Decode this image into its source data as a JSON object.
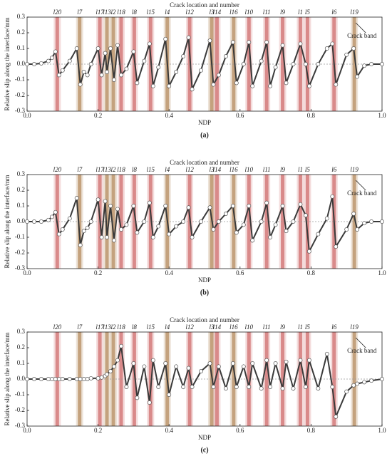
{
  "chart_data": [
    {
      "type": "line",
      "title": "Crack location and number",
      "xlabel": "NDP",
      "ylabel": "Relative slip along the interface/mm",
      "caption": "(a)",
      "annotation": "Crack band",
      "xlim": [
        0,
        1
      ],
      "xticks": [
        {
          "value": 0,
          "label": "0.0"
        },
        0.2,
        0.4,
        0.6,
        0.8,
        {
          "value": 1,
          "label": "1.0"
        }
      ],
      "ylim": [
        -0.3,
        0.3
      ],
      "yticks": [
        -0.3,
        -0.2,
        -0.1,
        {
          "value": 0,
          "label": "0.0"
        },
        0.1,
        0.2,
        0.3
      ],
      "cracks": [
        {
          "label": "l20",
          "x": 0.085,
          "color": "#d98a8a"
        },
        {
          "label": "l7",
          "x": 0.148,
          "color": "#c4a27e"
        },
        {
          "label": "l17",
          "x": 0.205,
          "color": "#d98a8a"
        },
        {
          "label": "l13",
          "x": 0.225,
          "color": "#c4a27e"
        },
        {
          "label": "l2",
          "x": 0.243,
          "color": "#c4a27e"
        },
        {
          "label": "l18",
          "x": 0.265,
          "color": "#d98a8a"
        },
        {
          "label": "l8",
          "x": 0.302,
          "color": "#d98a8a"
        },
        {
          "label": "l15",
          "x": 0.348,
          "color": "#d98a8a"
        },
        {
          "label": "l4",
          "x": 0.395,
          "color": "#c4a27e"
        },
        {
          "label": "l12",
          "x": 0.458,
          "color": "#d98a8a"
        },
        {
          "label": "l3",
          "x": 0.52,
          "color": "#c4a27e"
        },
        {
          "label": "l14",
          "x": 0.535,
          "color": "#d98a8a"
        },
        {
          "label": "l16",
          "x": 0.582,
          "color": "#c4a27e"
        },
        {
          "label": "l10",
          "x": 0.625,
          "color": "#d98a8a"
        },
        {
          "label": "l11",
          "x": 0.675,
          "color": "#d98a8a"
        },
        {
          "label": "l9",
          "x": 0.72,
          "color": "#d98a8a"
        },
        {
          "label": "l1",
          "x": 0.77,
          "color": "#d98a8a"
        },
        {
          "label": "l5",
          "x": 0.79,
          "color": "#d98a8a"
        },
        {
          "label": "l6",
          "x": 0.865,
          "color": "#d98a8a"
        },
        {
          "label": "l19",
          "x": 0.922,
          "color": "#c4a27e"
        }
      ],
      "color": "#3a3a3a",
      "x": [
        0,
        0.02,
        0.04,
        0.06,
        0.07,
        0.08,
        0.09,
        0.1,
        0.12,
        0.14,
        0.15,
        0.16,
        0.17,
        0.18,
        0.2,
        0.21,
        0.22,
        0.225,
        0.235,
        0.245,
        0.255,
        0.265,
        0.28,
        0.3,
        0.31,
        0.33,
        0.345,
        0.355,
        0.37,
        0.39,
        0.4,
        0.42,
        0.44,
        0.455,
        0.465,
        0.49,
        0.515,
        0.525,
        0.54,
        0.56,
        0.58,
        0.59,
        0.61,
        0.625,
        0.635,
        0.66,
        0.675,
        0.685,
        0.7,
        0.72,
        0.73,
        0.75,
        0.77,
        0.785,
        0.795,
        0.82,
        0.845,
        0.86,
        0.87,
        0.9,
        0.92,
        0.93,
        0.95,
        0.97,
        1.0
      ],
      "values": [
        0,
        0,
        0.005,
        0.02,
        0.04,
        0.08,
        -0.07,
        -0.04,
        0.02,
        0.1,
        -0.13,
        -0.05,
        -0.07,
        0,
        0.1,
        -0.07,
        0.07,
        -0.05,
        0.1,
        -0.1,
        0.12,
        -0.07,
        -0.03,
        0.08,
        -0.12,
        0.02,
        0.13,
        -0.14,
        -0.02,
        0.16,
        -0.14,
        -0.05,
        0.05,
        0.17,
        -0.16,
        -0.04,
        0.15,
        -0.13,
        -0.07,
        0.05,
        0.14,
        -0.12,
        0,
        0.14,
        -0.14,
        0.02,
        0.14,
        -0.14,
        -0.02,
        0.12,
        -0.12,
        0,
        0.13,
        0,
        -0.14,
        0,
        0.1,
        0.13,
        -0.13,
        0.06,
        0.1,
        -0.08,
        -0.01,
        0,
        0
      ]
    },
    {
      "type": "line",
      "title": "Crack location and number",
      "xlabel": "NDP",
      "ylabel": "Relative slip along the interface/mm",
      "caption": "(b)",
      "annotation": "Crack band",
      "xlim": [
        0,
        1
      ],
      "xticks": [
        {
          "value": 0,
          "label": "0.0"
        },
        0.2,
        0.4,
        0.6,
        0.8,
        {
          "value": 1,
          "label": "1.0"
        }
      ],
      "ylim": [
        -0.3,
        0.3
      ],
      "yticks": [
        -0.3,
        -0.2,
        -0.1,
        {
          "value": 0,
          "label": "0.0"
        },
        0.1,
        0.2,
        0.3
      ],
      "cracks": [
        {
          "label": "l20",
          "x": 0.085,
          "color": "#d98a8a"
        },
        {
          "label": "l7",
          "x": 0.148,
          "color": "#c4a27e"
        },
        {
          "label": "l17",
          "x": 0.205,
          "color": "#d98a8a"
        },
        {
          "label": "l13",
          "x": 0.225,
          "color": "#c4a27e"
        },
        {
          "label": "l2",
          "x": 0.243,
          "color": "#c4a27e"
        },
        {
          "label": "l18",
          "x": 0.265,
          "color": "#d98a8a"
        },
        {
          "label": "l8",
          "x": 0.302,
          "color": "#d98a8a"
        },
        {
          "label": "l15",
          "x": 0.348,
          "color": "#d98a8a"
        },
        {
          "label": "l4",
          "x": 0.395,
          "color": "#c4a27e"
        },
        {
          "label": "l12",
          "x": 0.458,
          "color": "#d98a8a"
        },
        {
          "label": "l3",
          "x": 0.52,
          "color": "#c4a27e"
        },
        {
          "label": "l14",
          "x": 0.535,
          "color": "#d98a8a"
        },
        {
          "label": "l16",
          "x": 0.582,
          "color": "#c4a27e"
        },
        {
          "label": "l10",
          "x": 0.625,
          "color": "#d98a8a"
        },
        {
          "label": "l11",
          "x": 0.675,
          "color": "#d98a8a"
        },
        {
          "label": "l9",
          "x": 0.72,
          "color": "#d98a8a"
        },
        {
          "label": "l1",
          "x": 0.77,
          "color": "#d98a8a"
        },
        {
          "label": "l5",
          "x": 0.79,
          "color": "#d98a8a"
        },
        {
          "label": "l6",
          "x": 0.865,
          "color": "#d98a8a"
        },
        {
          "label": "l19",
          "x": 0.922,
          "color": "#c4a27e"
        }
      ],
      "color": "#3a3a3a",
      "x": [
        0,
        0.02,
        0.04,
        0.06,
        0.07,
        0.08,
        0.09,
        0.1,
        0.12,
        0.14,
        0.15,
        0.16,
        0.17,
        0.18,
        0.2,
        0.21,
        0.22,
        0.225,
        0.235,
        0.245,
        0.255,
        0.265,
        0.28,
        0.3,
        0.31,
        0.33,
        0.345,
        0.355,
        0.37,
        0.39,
        0.4,
        0.42,
        0.44,
        0.455,
        0.465,
        0.49,
        0.515,
        0.525,
        0.54,
        0.56,
        0.58,
        0.59,
        0.61,
        0.625,
        0.635,
        0.66,
        0.675,
        0.685,
        0.7,
        0.72,
        0.73,
        0.75,
        0.77,
        0.785,
        0.795,
        0.82,
        0.845,
        0.86,
        0.87,
        0.9,
        0.92,
        0.93,
        0.95,
        0.97,
        1.0
      ],
      "values": [
        0,
        0,
        0,
        0.01,
        0.03,
        0.06,
        -0.08,
        -0.05,
        0.02,
        0.15,
        -0.15,
        -0.06,
        -0.04,
        0,
        0.14,
        -0.1,
        0.13,
        -0.1,
        0.1,
        -0.12,
        0.08,
        -0.05,
        -0.02,
        0.1,
        -0.07,
        0,
        0.12,
        -0.1,
        -0.03,
        0.1,
        -0.08,
        -0.03,
        0,
        0.09,
        -0.1,
        0,
        0.09,
        -0.05,
        0,
        0.05,
        0.1,
        -0.07,
        -0.02,
        0.1,
        -0.12,
        0,
        0.12,
        -0.1,
        -0.02,
        0.1,
        -0.06,
        0,
        0.11,
        0.04,
        -0.19,
        -0.08,
        0.02,
        0.16,
        -0.16,
        -0.05,
        0.05,
        -0.05,
        -0.01,
        0,
        0
      ]
    },
    {
      "type": "line",
      "title": "Crack location and number",
      "xlabel": "NDP",
      "ylabel": "Relative slip along the interface/mm",
      "caption": "(c)",
      "annotation": "Crack band",
      "xlim": [
        0,
        1
      ],
      "xticks": [
        {
          "value": 0,
          "label": "0.0"
        },
        0.2,
        0.4,
        0.6,
        0.8,
        {
          "value": 1,
          "label": "1.0"
        }
      ],
      "ylim": [
        -0.3,
        0.3
      ],
      "yticks": [
        -0.3,
        -0.2,
        -0.1,
        {
          "value": 0,
          "label": "0.0"
        },
        0.1,
        0.2,
        0.3
      ],
      "cracks": [
        {
          "label": "l20",
          "x": 0.085,
          "color": "#d98a8a"
        },
        {
          "label": "l7",
          "x": 0.148,
          "color": "#c4a27e"
        },
        {
          "label": "l17",
          "x": 0.205,
          "color": "#d98a8a"
        },
        {
          "label": "l13",
          "x": 0.225,
          "color": "#c4a27e"
        },
        {
          "label": "l2",
          "x": 0.243,
          "color": "#c4a27e"
        },
        {
          "label": "l18",
          "x": 0.265,
          "color": "#d98a8a"
        },
        {
          "label": "l8",
          "x": 0.302,
          "color": "#d98a8a"
        },
        {
          "label": "l15",
          "x": 0.348,
          "color": "#d98a8a"
        },
        {
          "label": "l4",
          "x": 0.395,
          "color": "#c4a27e"
        },
        {
          "label": "l12",
          "x": 0.458,
          "color": "#d98a8a"
        },
        {
          "label": "l3",
          "x": 0.52,
          "color": "#c4a27e"
        },
        {
          "label": "l14",
          "x": 0.535,
          "color": "#d98a8a"
        },
        {
          "label": "l16",
          "x": 0.582,
          "color": "#c4a27e"
        },
        {
          "label": "l10",
          "x": 0.625,
          "color": "#d98a8a"
        },
        {
          "label": "l11",
          "x": 0.675,
          "color": "#d98a8a"
        },
        {
          "label": "l9",
          "x": 0.72,
          "color": "#d98a8a"
        },
        {
          "label": "l1",
          "x": 0.77,
          "color": "#d98a8a"
        },
        {
          "label": "l5",
          "x": 0.79,
          "color": "#d98a8a"
        },
        {
          "label": "l6",
          "x": 0.865,
          "color": "#d98a8a"
        },
        {
          "label": "l19",
          "x": 0.922,
          "color": "#c4a27e"
        }
      ],
      "color": "#3a3a3a",
      "x": [
        0,
        0.02,
        0.04,
        0.06,
        0.07,
        0.08,
        0.09,
        0.1,
        0.12,
        0.14,
        0.15,
        0.16,
        0.17,
        0.18,
        0.2,
        0.21,
        0.22,
        0.225,
        0.235,
        0.245,
        0.255,
        0.265,
        0.28,
        0.3,
        0.31,
        0.33,
        0.345,
        0.355,
        0.37,
        0.39,
        0.4,
        0.42,
        0.44,
        0.455,
        0.465,
        0.49,
        0.515,
        0.525,
        0.54,
        0.56,
        0.58,
        0.59,
        0.61,
        0.625,
        0.635,
        0.66,
        0.675,
        0.685,
        0.7,
        0.72,
        0.73,
        0.75,
        0.77,
        0.785,
        0.795,
        0.82,
        0.845,
        0.86,
        0.87,
        0.9,
        0.92,
        0.93,
        0.95,
        0.97,
        1.0
      ],
      "values": [
        0,
        0,
        0,
        0,
        0,
        0,
        0,
        0,
        0,
        0,
        0,
        0,
        0,
        0.005,
        0.005,
        0.01,
        0.02,
        0.03,
        0.05,
        0.08,
        0.12,
        0.21,
        -0.05,
        0.1,
        -0.12,
        0.08,
        -0.15,
        0.12,
        -0.05,
        0.1,
        -0.1,
        0.08,
        -0.05,
        0.07,
        -0.05,
        0.05,
        0.1,
        -0.05,
        0.08,
        -0.06,
        0.1,
        -0.05,
        0.08,
        -0.05,
        0.1,
        -0.06,
        0.12,
        -0.05,
        0.1,
        -0.06,
        0.11,
        -0.06,
        0.12,
        -0.05,
        0.12,
        -0.06,
        0.16,
        -0.05,
        -0.24,
        -0.08,
        -0.04,
        -0.03,
        -0.02,
        -0.01,
        0
      ]
    }
  ]
}
